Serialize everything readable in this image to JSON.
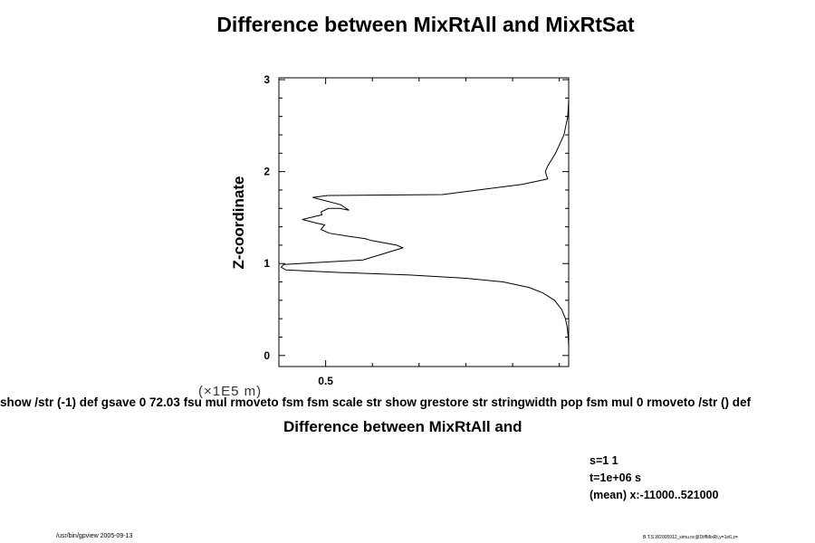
{
  "title": "Difference between MixRtAll and MixRtSat",
  "axis_scale_label": "(×1E5 m)",
  "garbled_text": "show /str (-1) def gsave 0 72.03 fsu mul rmoveto fsm fsm scale str show grestore str stringwidth pop fsm mul 0 rmoveto /str () def",
  "info": {
    "s": "s=1 1",
    "t": "t=1e+06 s",
    "mean": "(mean) x:-11000..521000"
  },
  "footer_left": "/usr/bin/gpview 2005-09-13",
  "footer_right": "B.T.S.W2005912_simu.nc@DiffMixRt,y=1e6,z=",
  "chart_data": {
    "type": "line",
    "title": "Difference between MixRtAll and MixRtSat",
    "xlabel": "Difference between MixRtAll and",
    "ylabel": "Z-coordinate",
    "xlim": [
      0.4,
      1.02
    ],
    "ylim": [
      -0.12,
      3.02
    ],
    "x_ticks": [
      {
        "value": 0.5,
        "label": "0.5"
      }
    ],
    "y_ticks": [
      {
        "value": 0,
        "label": "0"
      },
      {
        "value": 1,
        "label": "1"
      },
      {
        "value": 2,
        "label": "2"
      },
      {
        "value": 3,
        "label": "3"
      }
    ],
    "grid": false,
    "series": [
      {
        "x": [
          1.02,
          1.02,
          1.019,
          1.017,
          1.013,
          1.005,
          0.99,
          0.965,
          0.935,
          0.88,
          0.8,
          0.68,
          0.52,
          0.415,
          0.405,
          0.41,
          0.58,
          0.665,
          0.652,
          0.598,
          0.585,
          0.545,
          0.508,
          0.49,
          0.498,
          0.48,
          0.45,
          0.492,
          0.49,
          0.506,
          0.53,
          0.55,
          0.532,
          0.472,
          0.505,
          0.75,
          0.92,
          0.975,
          0.97,
          0.975,
          0.992,
          1.01,
          1.018,
          1.02
        ],
        "y": [
          -0.1,
          0.1,
          0.2,
          0.3,
          0.4,
          0.5,
          0.6,
          0.68,
          0.74,
          0.8,
          0.84,
          0.875,
          0.905,
          0.93,
          0.96,
          0.99,
          1.04,
          1.17,
          1.2,
          1.25,
          1.27,
          1.3,
          1.33,
          1.37,
          1.42,
          1.44,
          1.48,
          1.53,
          1.56,
          1.6,
          1.6,
          1.58,
          1.64,
          1.72,
          1.74,
          1.75,
          1.86,
          1.92,
          2.0,
          2.06,
          2.2,
          2.4,
          2.6,
          2.78
        ]
      }
    ]
  }
}
